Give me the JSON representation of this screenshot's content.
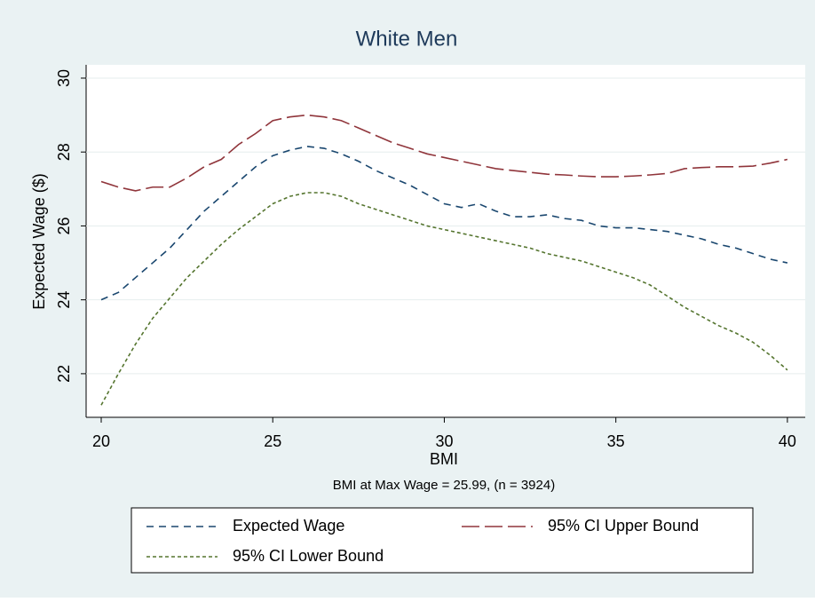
{
  "chart_data": {
    "type": "line",
    "title": "White Men",
    "x_label": "BMI",
    "y_label": "Expected Wage ($)",
    "note": "BMI at Max Wage = 25.99, (n = 3924)",
    "x": [
      20,
      20.5,
      21,
      21.5,
      22,
      22.5,
      23,
      23.5,
      24,
      24.5,
      25,
      25.5,
      26,
      26.5,
      27,
      27.5,
      28,
      28.5,
      29,
      29.5,
      30,
      30.5,
      31,
      31.5,
      32,
      32.5,
      33,
      33.5,
      34,
      34.5,
      35,
      35.5,
      36,
      36.5,
      37,
      37.5,
      38,
      38.5,
      39,
      39.5,
      40
    ],
    "series": [
      {
        "name": "Expected Wage",
        "color": "#1a476f",
        "dash": "8,6",
        "values": [
          24.0,
          24.2,
          24.6,
          25.0,
          25.4,
          25.9,
          26.4,
          26.8,
          27.2,
          27.6,
          27.9,
          28.05,
          28.15,
          28.1,
          27.95,
          27.75,
          27.5,
          27.3,
          27.1,
          26.85,
          26.6,
          26.5,
          26.6,
          26.4,
          26.25,
          26.25,
          26.3,
          26.2,
          26.15,
          26.0,
          25.95,
          25.95,
          25.9,
          25.85,
          25.75,
          25.65,
          25.5,
          25.4,
          25.25,
          25.1,
          25.0
        ]
      },
      {
        "name": "95% CI Upper Bound",
        "color": "#90353b",
        "dash": "20,6",
        "values": [
          27.2,
          27.05,
          26.95,
          27.05,
          27.05,
          27.3,
          27.6,
          27.8,
          28.2,
          28.5,
          28.85,
          28.95,
          29.0,
          28.95,
          28.85,
          28.65,
          28.45,
          28.25,
          28.1,
          27.95,
          27.85,
          27.75,
          27.65,
          27.55,
          27.5,
          27.45,
          27.4,
          27.38,
          27.35,
          27.33,
          27.33,
          27.35,
          27.38,
          27.42,
          27.55,
          27.58,
          27.6,
          27.6,
          27.62,
          27.7,
          27.8
        ]
      },
      {
        "name": "95% CI Lower Bound",
        "color": "#55752f",
        "dash": "4,3",
        "values": [
          21.15,
          22.0,
          22.8,
          23.5,
          24.05,
          24.6,
          25.05,
          25.5,
          25.9,
          26.25,
          26.6,
          26.8,
          26.9,
          26.9,
          26.8,
          26.6,
          26.45,
          26.3,
          26.15,
          26.0,
          25.9,
          25.8,
          25.7,
          25.6,
          25.5,
          25.4,
          25.25,
          25.15,
          25.05,
          24.9,
          24.75,
          24.6,
          24.4,
          24.1,
          23.8,
          23.55,
          23.3,
          23.1,
          22.85,
          22.5,
          22.1
        ]
      }
    ],
    "xlim": [
      19.56,
      40.52
    ],
    "ylim": [
      20.82,
      30.36
    ],
    "xticks": [
      20,
      25,
      30,
      35,
      40
    ],
    "yticks": [
      22,
      24,
      26,
      28,
      30
    ],
    "grid": true
  }
}
